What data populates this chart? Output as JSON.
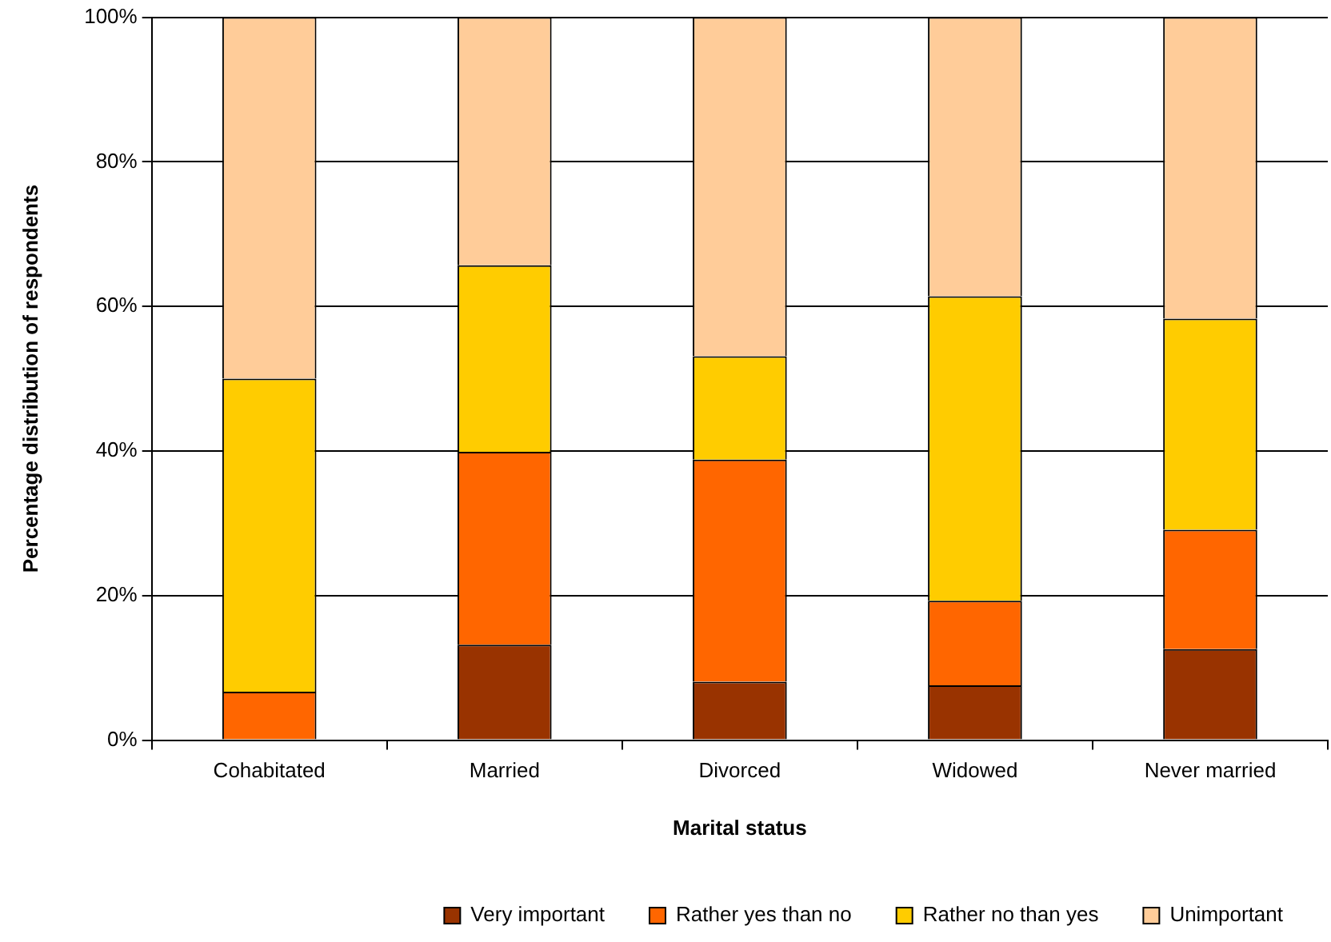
{
  "chart_data": {
    "type": "bar",
    "stacked": true,
    "xlabel": "Marital status",
    "ylabel": "Percentage distribution of respondents",
    "categories": [
      "Cohabitated",
      "Married",
      "Divorced",
      "Widowed",
      "Never married"
    ],
    "series": [
      {
        "name": "Very important",
        "color": "#993300",
        "values": [
          0,
          13.2,
          8.1,
          7.6,
          12.6
        ]
      },
      {
        "name": "Rather yes than no",
        "color": "#ff6600",
        "values": [
          6.7,
          26.7,
          30.7,
          11.7,
          16.5
        ]
      },
      {
        "name": "Rather no than yes",
        "color": "#ffcc00",
        "values": [
          43.3,
          25.8,
          14.3,
          42.1,
          29.2
        ]
      },
      {
        "name": "Unimportant",
        "color": "#ffcc99",
        "values": [
          50,
          34.3,
          46.9,
          38.6,
          41.7
        ]
      }
    ],
    "ylim": [
      0,
      100
    ],
    "yticks": [
      {
        "value": 0,
        "label": "0%"
      },
      {
        "value": 20,
        "label": "20%"
      },
      {
        "value": 40,
        "label": "40%"
      },
      {
        "value": 60,
        "label": "60%"
      },
      {
        "value": 80,
        "label": "80%"
      },
      {
        "value": 100,
        "label": "100%"
      }
    ],
    "grid": "y",
    "legend": "bottom"
  }
}
